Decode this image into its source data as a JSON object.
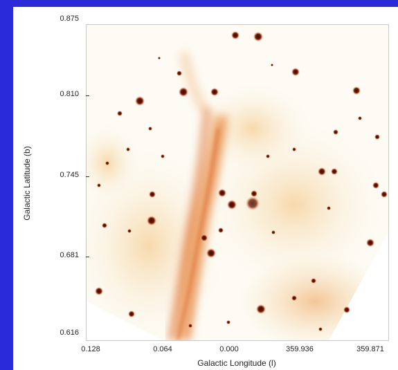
{
  "figure": {
    "y_axis_title": "Galactic Latitude (b)",
    "x_axis_title": "Galactic Longitude (l)",
    "y_ticks": [
      "0.875",
      "0.810",
      "0.745",
      "0.681",
      "0.616"
    ],
    "x_ticks": [
      "0.128",
      "0.064",
      "0.000",
      "359.936",
      "359.871"
    ]
  },
  "colors": {
    "background": "#2a2ad8",
    "panel": "#ffffff",
    "emission_light": "#f6d9a2",
    "emission_mid": "#ec9a4c",
    "emission_strong": "#d8561a",
    "star_core": "#2a0a00",
    "star_halo": "#c2410c"
  }
}
